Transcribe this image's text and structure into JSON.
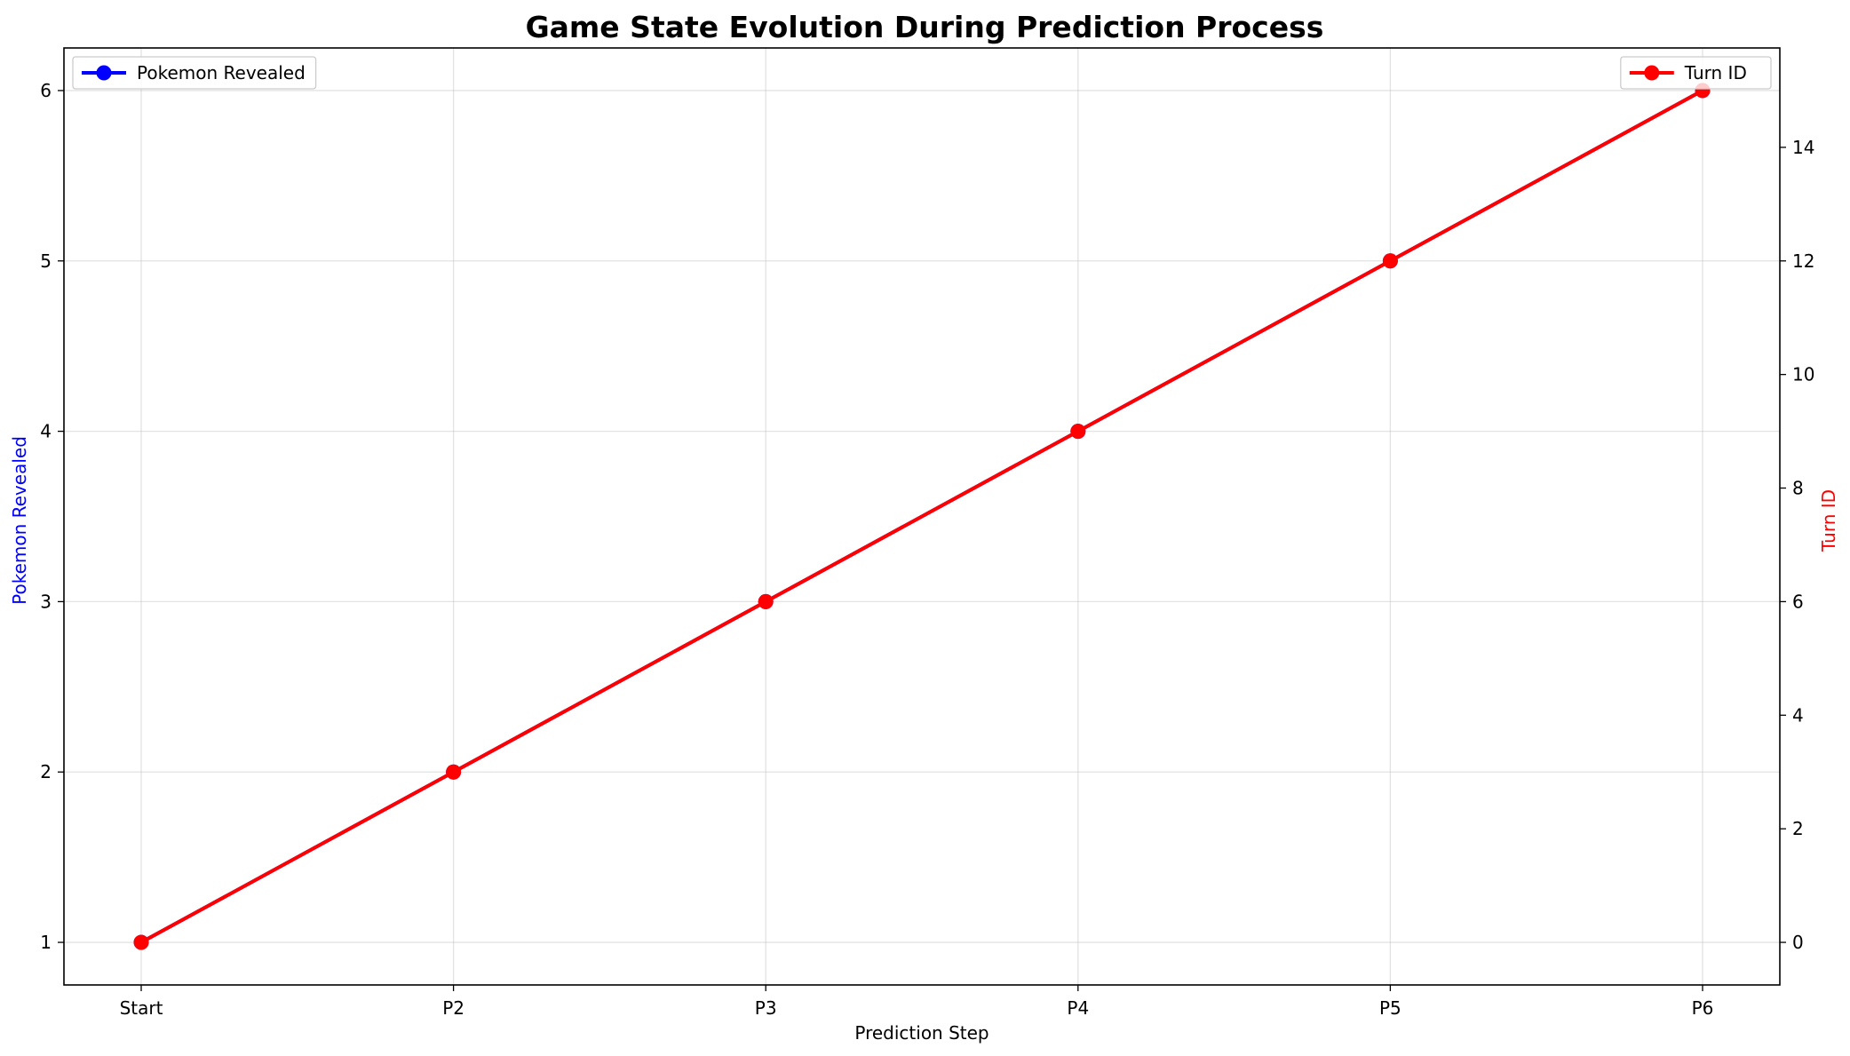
{
  "chart_data": {
    "type": "line",
    "title": "Game State Evolution During Prediction Process",
    "xlabel": "Prediction Step",
    "categories": [
      "Start",
      "P2",
      "P3",
      "P4",
      "P5",
      "P6"
    ],
    "left_axis": {
      "label": "Pokemon Revealed",
      "label_color": "#0000ff",
      "ylim": [
        0.75,
        6.25
      ],
      "ticks": [
        "1",
        "2",
        "3",
        "4",
        "5",
        "6"
      ]
    },
    "right_axis": {
      "label": "Turn ID",
      "label_color": "#ff0000",
      "ylim": [
        -0.75,
        15.75
      ],
      "ticks": [
        "0",
        "2",
        "4",
        "6",
        "8",
        "10",
        "12",
        "14"
      ]
    },
    "series": [
      {
        "name": "Pokemon Revealed",
        "axis": "left",
        "color": "#0000ff",
        "values": [
          1,
          2,
          3,
          4,
          5,
          6
        ]
      },
      {
        "name": "Turn ID",
        "axis": "right",
        "color": "#ff0000",
        "values": [
          0,
          3,
          6,
          9,
          12,
          15
        ]
      }
    ],
    "grid": true,
    "legends": [
      {
        "series": "Pokemon Revealed",
        "placement": "upper-left"
      },
      {
        "series": "Turn ID",
        "placement": "upper-right"
      }
    ]
  }
}
